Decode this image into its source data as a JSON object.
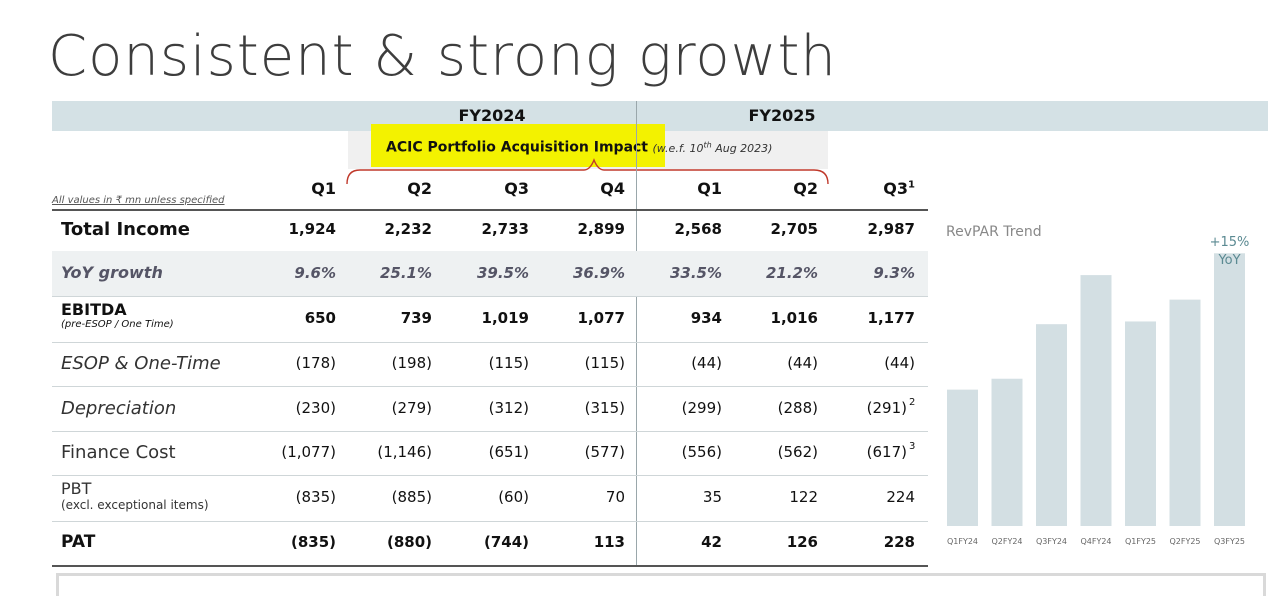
{
  "title": "Consistent & strong growth",
  "fy": {
    "fy2024": "FY2024",
    "fy2025": "FY2025"
  },
  "acic": {
    "label": "ACIC Portfolio Acquisition Impact",
    "note_prefix": "(w.e.f. 10",
    "note_sup": "th",
    "note_suffix": " Aug 2023)"
  },
  "units_note": "All values in ₹ mn unless specified",
  "quarters": [
    {
      "label": "Q1",
      "sup": ""
    },
    {
      "label": "Q2",
      "sup": ""
    },
    {
      "label": "Q3",
      "sup": ""
    },
    {
      "label": "Q4",
      "sup": ""
    },
    {
      "label": "Q1",
      "sup": ""
    },
    {
      "label": "Q2",
      "sup": ""
    },
    {
      "label": "Q3",
      "sup": "1"
    }
  ],
  "rows": [
    {
      "label": "Total Income",
      "sub": "",
      "values": [
        "1,924",
        "2,232",
        "2,733",
        "2,899",
        "2,568",
        "2,705",
        "2,987"
      ],
      "sups": [
        "",
        "",
        "",
        "",
        "",
        "",
        ""
      ]
    },
    {
      "label": "YoY growth",
      "sub": "",
      "values": [
        "9.6%",
        "25.1%",
        "39.5%",
        "36.9%",
        "33.5%",
        "21.2%",
        "9.3%"
      ],
      "sups": [
        "",
        "",
        "",
        "",
        "",
        "",
        ""
      ]
    },
    {
      "label": "EBITDA",
      "sub": "(pre-ESOP / One Time)",
      "values": [
        "650",
        "739",
        "1,019",
        "1,077",
        "934",
        "1,016",
        "1,177"
      ],
      "sups": [
        "",
        "",
        "",
        "",
        "",
        "",
        ""
      ]
    },
    {
      "label": "ESOP & One-Time",
      "sub": "",
      "values": [
        "(178)",
        "(198)",
        "(115)",
        "(115)",
        "(44)",
        "(44)",
        "(44)"
      ],
      "sups": [
        "",
        "",
        "",
        "",
        "",
        "",
        ""
      ]
    },
    {
      "label": "Depreciation",
      "sub": "",
      "values": [
        "(230)",
        "(279)",
        "(312)",
        "(315)",
        "(299)",
        "(288)",
        "(291)"
      ],
      "sups": [
        "",
        "",
        "",
        "",
        "",
        "",
        "2"
      ]
    },
    {
      "label": "Finance Cost",
      "sub": "",
      "values": [
        "(1,077)",
        "(1,146)",
        "(651)",
        "(577)",
        "(556)",
        "(562)",
        "(617)"
      ],
      "sups": [
        "",
        "",
        "",
        "",
        "",
        "",
        "3"
      ]
    },
    {
      "label": "PBT",
      "sub": "(excl. exceptional items)",
      "values": [
        "(835)",
        "(885)",
        "(60)",
        "70",
        "35",
        "122",
        "224"
      ],
      "sups": [
        "",
        "",
        "",
        "",
        "",
        "",
        ""
      ]
    },
    {
      "label": "PAT",
      "sub": "",
      "values": [
        "(835)",
        "(880)",
        "(744)",
        "113",
        "42",
        "126",
        "228"
      ],
      "sups": [
        "",
        "",
        "",
        "",
        "",
        "",
        ""
      ]
    }
  ],
  "chart_data": {
    "type": "bar",
    "title": "RevPAR Trend",
    "categories": [
      "Q1FY24",
      "Q2FY24",
      "Q3FY24",
      "Q4FY24",
      "Q1FY25",
      "Q2FY25",
      "Q3FY25"
    ],
    "values": [
      100,
      108,
      148,
      184,
      150,
      166,
      200
    ],
    "ylim": [
      0,
      220
    ],
    "annotation": {
      "line1": "+15%",
      "line2": "YoY"
    },
    "bar_color": "#d3dfe3",
    "annotation_color": "#5b8a92"
  },
  "colors": {
    "band": "#d4e1e5",
    "highlight": "#f3f200",
    "shade": "#eef1f2",
    "brace": "#c0392b"
  }
}
